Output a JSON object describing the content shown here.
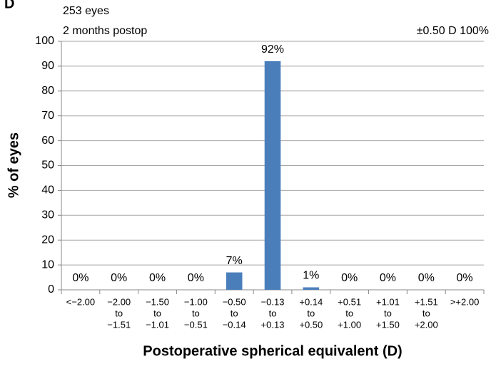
{
  "chart_data": {
    "type": "bar",
    "panel_label": "D",
    "annotations": [
      "253 eyes",
      "2 months postop",
      "±0.50 D 100%"
    ],
    "ylabel": "% of eyes",
    "xlabel": "Postoperative spherical equivalent (D)",
    "categories": [
      [
        "<−2.00"
      ],
      [
        "−2.00",
        "to",
        "−1.51"
      ],
      [
        "−1.50",
        "to",
        "−1.01"
      ],
      [
        "−1.00",
        "to",
        "−0.51"
      ],
      [
        "−0.50",
        "to",
        "−0.14"
      ],
      [
        "−0.13",
        "to",
        "+0.13"
      ],
      [
        "+0.14",
        "to",
        "+0.50"
      ],
      [
        "+0.51",
        "to",
        "+1.00"
      ],
      [
        "+1.01",
        "to",
        "+1.50"
      ],
      [
        "+1.51",
        "to",
        "+2.00"
      ],
      [
        ">+2.00"
      ]
    ],
    "values": [
      0,
      0,
      0,
      0,
      7,
      92,
      1,
      0,
      0,
      0,
      0
    ],
    "value_labels": [
      "0%",
      "0%",
      "0%",
      "0%",
      "7%",
      "92%",
      "1%",
      "0%",
      "0%",
      "0%",
      "0%"
    ],
    "color": "#4a7ebb",
    "ylim": [
      0,
      100
    ],
    "yticks": [
      0,
      10,
      20,
      30,
      40,
      50,
      60,
      70,
      80,
      90,
      100
    ],
    "grid": true
  }
}
